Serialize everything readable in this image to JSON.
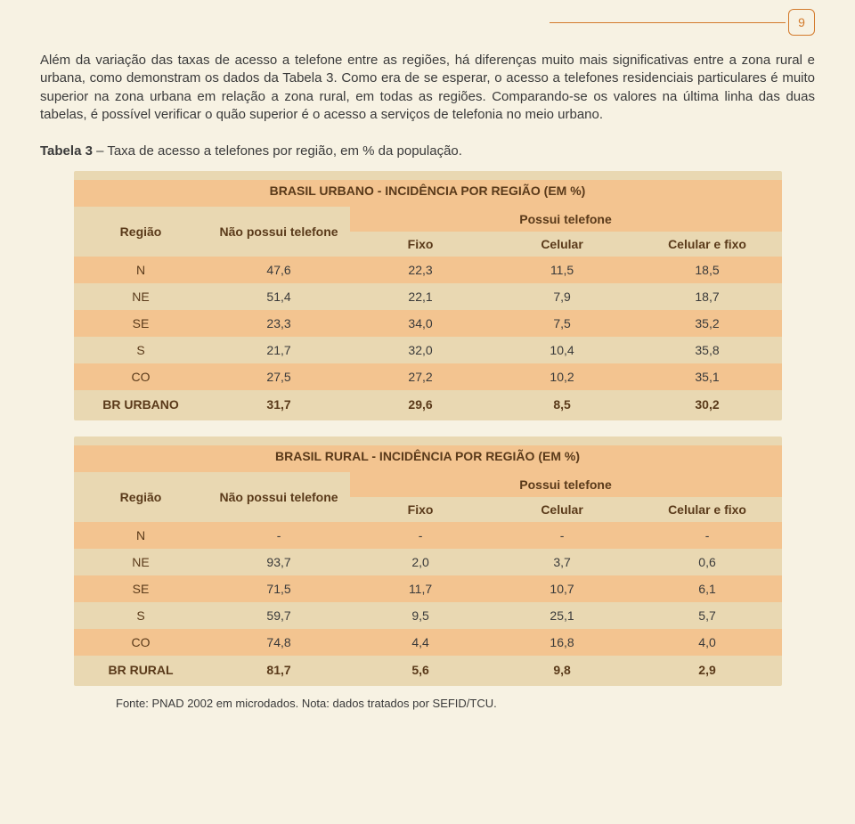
{
  "colors": {
    "page_bg": "#f7f2e3",
    "accent": "#d37a2b",
    "text": "#3a3a3a",
    "header_text": "#5a3a1a",
    "slab_bg": "#e9d8b2",
    "stripe_bg": "#f3c490",
    "line": "#d37a2b"
  },
  "page_number": "9",
  "paragraphs": {
    "p1": "Além da variação das taxas de acesso a telefone entre as regiões, há diferenças muito mais significativas entre a zona rural e urbana, como demonstram os dados da Tabela 3. Como era de se esperar, o acesso a telefones residenciais particulares é muito superior na zona urbana em relação a zona rural, em todas as regiões. Comparando-se os valores na última linha das duas tabelas, é possível verificar o quão superior é o acesso a serviços de telefonia no meio urbano.",
    "caption_prefix": "Tabela 3",
    "caption_rest": " – Taxa de acesso a telefones por região, em % da população."
  },
  "table_common": {
    "col_regiao": "Região",
    "col_nao_possui": "Não possui telefone",
    "col_possui": "Possui telefone",
    "col_fixo": "Fixo",
    "col_celular": "Celular",
    "col_cel_fixo": "Celular e fixo"
  },
  "urbano": {
    "title": "BRASIL URBANO - INCIDÊNCIA POR REGIÃO (EM %)",
    "rows": [
      {
        "r": "N",
        "np": "47,6",
        "f": "22,3",
        "c": "11,5",
        "cf": "18,5"
      },
      {
        "r": "NE",
        "np": "51,4",
        "f": "22,1",
        "c": "7,9",
        "cf": "18,7"
      },
      {
        "r": "SE",
        "np": "23,3",
        "f": "34,0",
        "c": "7,5",
        "cf": "35,2"
      },
      {
        "r": "S",
        "np": "21,7",
        "f": "32,0",
        "c": "10,4",
        "cf": "35,8"
      },
      {
        "r": "CO",
        "np": "27,5",
        "f": "27,2",
        "c": "10,2",
        "cf": "35,1"
      }
    ],
    "total": {
      "r": "BR URBANO",
      "np": "31,7",
      "f": "29,6",
      "c": "8,5",
      "cf": "30,2"
    }
  },
  "rural": {
    "title": "BRASIL RURAL - INCIDÊNCIA POR REGIÃO (EM %)",
    "rows": [
      {
        "r": "N",
        "np": "-",
        "f": "-",
        "c": "-",
        "cf": "-"
      },
      {
        "r": "NE",
        "np": "93,7",
        "f": "2,0",
        "c": "3,7",
        "cf": "0,6"
      },
      {
        "r": "SE",
        "np": "71,5",
        "f": "11,7",
        "c": "10,7",
        "cf": "6,1"
      },
      {
        "r": "S",
        "np": "59,7",
        "f": "9,5",
        "c": "25,1",
        "cf": "5,7"
      },
      {
        "r": "CO",
        "np": "74,8",
        "f": "4,4",
        "c": "16,8",
        "cf": "4,0"
      }
    ],
    "total": {
      "r": "BR RURAL",
      "np": "81,7",
      "f": "5,6",
      "c": "9,8",
      "cf": "2,9"
    }
  },
  "footnote": "Fonte: PNAD 2002 em microdados. Nota: dados tratados por SEFID/TCU."
}
